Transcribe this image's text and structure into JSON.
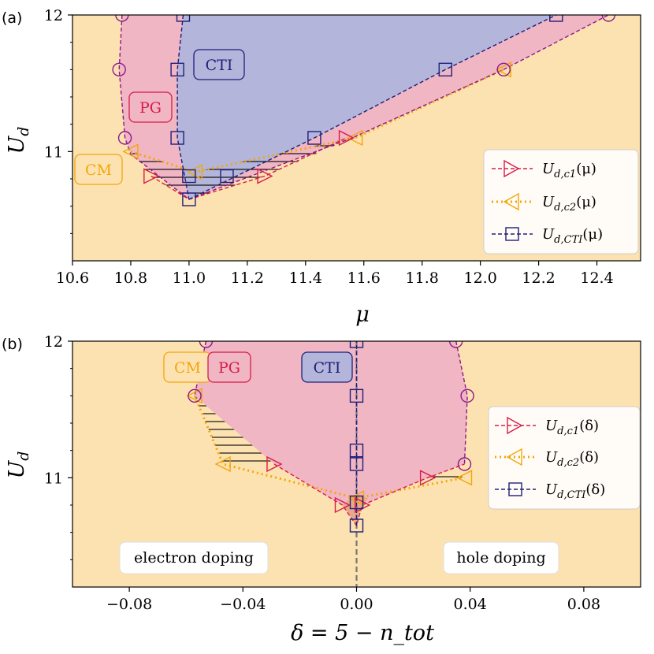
{
  "colors": {
    "cm": "#fde2b1",
    "pg": "#f0b6c3",
    "cti": "#b3b5da",
    "c1": "#d81b4a",
    "c2": "#f4a60a",
    "cti_line": "#1f1f7a",
    "circle": "#8b1a8b",
    "cm_edge": "#f4a60a",
    "pg_edge": "#d81b4a",
    "cti_edge": "#1f1f7a"
  },
  "chart_data": [
    {
      "panel": "(a)",
      "type": "line",
      "xlabel": "μ",
      "ylabel": "U_d",
      "xlim": [
        10.6,
        12.55
      ],
      "ylim": [
        10.2,
        12.0
      ],
      "xticks": [
        "10.6",
        "10.8",
        "11.0",
        "11.2",
        "11.4",
        "11.6",
        "11.8",
        "12.0",
        "12.2",
        "12.4"
      ],
      "xtick_values": [
        10.6,
        10.8,
        11.0,
        11.2,
        11.4,
        11.6,
        11.8,
        12.0,
        12.2,
        12.4
      ],
      "yticks": [
        "11",
        "12"
      ],
      "ytick_values": [
        11,
        12
      ],
      "regions": [
        {
          "name": "CM",
          "label": "CM"
        },
        {
          "name": "PG",
          "label": "PG"
        },
        {
          "name": "CTI",
          "label": "CTI"
        }
      ],
      "pg_left_boundary": {
        "x": [
          10.77,
          10.76,
          10.78,
          10.8,
          11.0
        ],
        "y": [
          12.0,
          11.6,
          11.1,
          10.98,
          10.65
        ]
      },
      "pg_right_boundary": {
        "x": [
          11.0,
          11.56,
          12.08,
          12.44
        ],
        "y": [
          10.65,
          11.1,
          11.6,
          12.0
        ]
      },
      "cti_boundary": {
        "x": [
          11.0,
          11.43,
          11.88,
          12.26
        ],
        "y": [
          10.65,
          11.1,
          11.6,
          12.0
        ]
      },
      "series": [
        {
          "name": "U_{d,c1}(μ)",
          "legend": "U",
          "legend_sub": "d,c1",
          "legend_arg": "(μ)",
          "marker": "triangle-right",
          "style": "dashed",
          "x": [
            10.87,
            11.26,
            11.54
          ],
          "y": [
            10.82,
            10.82,
            11.1
          ]
        },
        {
          "name": "U_{d,c2}(μ)",
          "legend": "U",
          "legend_sub": "d,c2",
          "legend_arg": "(μ)",
          "marker": "triangle-left",
          "style": "dotted",
          "x": [
            10.8,
            11.02,
            11.57,
            12.08
          ],
          "y": [
            11.0,
            10.85,
            11.1,
            11.6
          ]
        },
        {
          "name": "U_{d,CTI}(μ)",
          "legend": "U",
          "legend_sub": "d,CTI",
          "legend_arg": "(μ)",
          "marker": "square",
          "style": "dashed",
          "x": [
            11.0,
            11.0,
            11.13,
            10.96,
            10.96,
            10.98
          ],
          "y": [
            10.65,
            10.82,
            10.82,
            11.1,
            11.6,
            12.0
          ]
        },
        {
          "name": "circles",
          "marker": "circle",
          "x": [
            10.77,
            10.76,
            10.78,
            12.08,
            12.44
          ],
          "y": [
            12.0,
            11.6,
            11.1,
            11.6,
            12.0
          ]
        }
      ],
      "extra_points": {
        "cti_squares_right": {
          "x": [
            11.43,
            11.88,
            12.26
          ],
          "y": [
            11.1,
            11.6,
            12.0
          ]
        }
      }
    },
    {
      "panel": "(b)",
      "type": "line",
      "xlabel": "δ = 5 − n_tot",
      "ylabel": "U_d",
      "xlim": [
        -0.1,
        0.1
      ],
      "ylim": [
        10.2,
        12.0
      ],
      "xticks": [
        "−0.08",
        "−0.04",
        "0.00",
        "0.04",
        "0.08"
      ],
      "xtick_values": [
        -0.08,
        -0.04,
        0.0,
        0.04,
        0.08
      ],
      "yticks": [
        "11",
        "12"
      ],
      "ytick_values": [
        11,
        12
      ],
      "regions": [
        {
          "name": "CM",
          "label": "CM"
        },
        {
          "name": "PG",
          "label": "PG"
        },
        {
          "name": "CTI",
          "label": "CTI"
        }
      ],
      "annotations": [
        "electron doping",
        "hole doping"
      ],
      "pg_boundary_left": {
        "x": [
          -0.053,
          -0.057
        ],
        "y": [
          12.0,
          11.6
        ]
      },
      "pg_boundary_right": {
        "x": [
          0.035,
          0.039,
          0.038
        ],
        "y": [
          12.0,
          11.6,
          11.1
        ]
      },
      "series": [
        {
          "name": "U_{d,c1}(δ)",
          "legend": "U",
          "legend_sub": "d,c1",
          "legend_arg": "(δ)",
          "marker": "triangle-right",
          "style": "dashed",
          "x": [
            -0.029,
            -0.005,
            0.002,
            0.025
          ],
          "y": [
            11.1,
            10.8,
            10.8,
            11.0
          ]
        },
        {
          "name": "U_{d,c2}(δ)",
          "legend": "U",
          "legend_sub": "d,c2",
          "legend_arg": "(δ)",
          "marker": "triangle-left",
          "style": "dotted",
          "x": [
            -0.057,
            -0.047,
            0.0,
            0.038
          ],
          "y": [
            11.6,
            11.1,
            10.85,
            11.0
          ]
        },
        {
          "name": "U_{d,CTI}(δ)",
          "legend": "U",
          "legend_sub": "d,CTI",
          "legend_arg": "(δ)",
          "marker": "square",
          "style": "dashed",
          "x": [
            0.0,
            0.0,
            0.0,
            0.0,
            0.0,
            0.0
          ],
          "y": [
            10.65,
            10.82,
            11.1,
            11.2,
            11.6,
            12.0
          ]
        },
        {
          "name": "circles",
          "marker": "circle",
          "x": [
            -0.053,
            -0.057,
            0.035,
            0.039,
            0.038
          ],
          "y": [
            12.0,
            11.6,
            12.0,
            11.6,
            11.1
          ]
        }
      ]
    }
  ]
}
